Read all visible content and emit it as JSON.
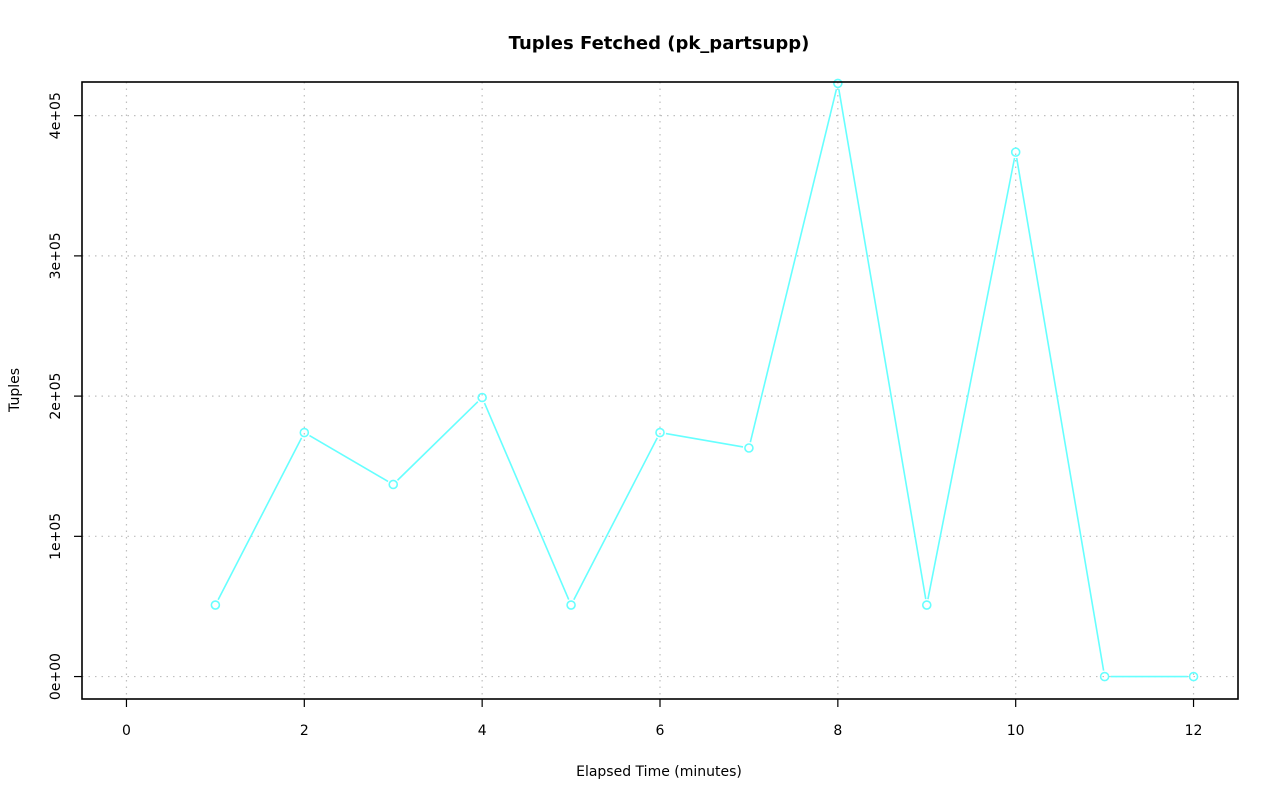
{
  "chart_data": {
    "type": "line",
    "title": "Tuples Fetched (pk_partsupp)",
    "xlabel": "Elapsed Time (minutes)",
    "ylabel": "Tuples",
    "xlim": [
      -0.5,
      12.5
    ],
    "ylim": [
      -16000,
      424000
    ],
    "x_ticks": [
      0,
      2,
      4,
      6,
      8,
      10,
      12
    ],
    "x_tick_labels": [
      "0",
      "2",
      "4",
      "6",
      "8",
      "10",
      "12"
    ],
    "y_ticks": [
      0,
      100000,
      200000,
      300000,
      400000
    ],
    "y_tick_labels": [
      "0e+00",
      "1e+05",
      "2e+05",
      "3e+05",
      "4e+05"
    ],
    "grid": true,
    "series": [
      {
        "color": "#66ffff",
        "marker": "circle",
        "x": [
          1,
          2,
          3,
          4,
          5,
          6,
          7,
          8,
          9,
          10,
          11,
          12
        ],
        "y": [
          51000,
          174000,
          137000,
          199000,
          51000,
          174000,
          163000,
          423000,
          51000,
          374000,
          0,
          0
        ]
      }
    ]
  }
}
